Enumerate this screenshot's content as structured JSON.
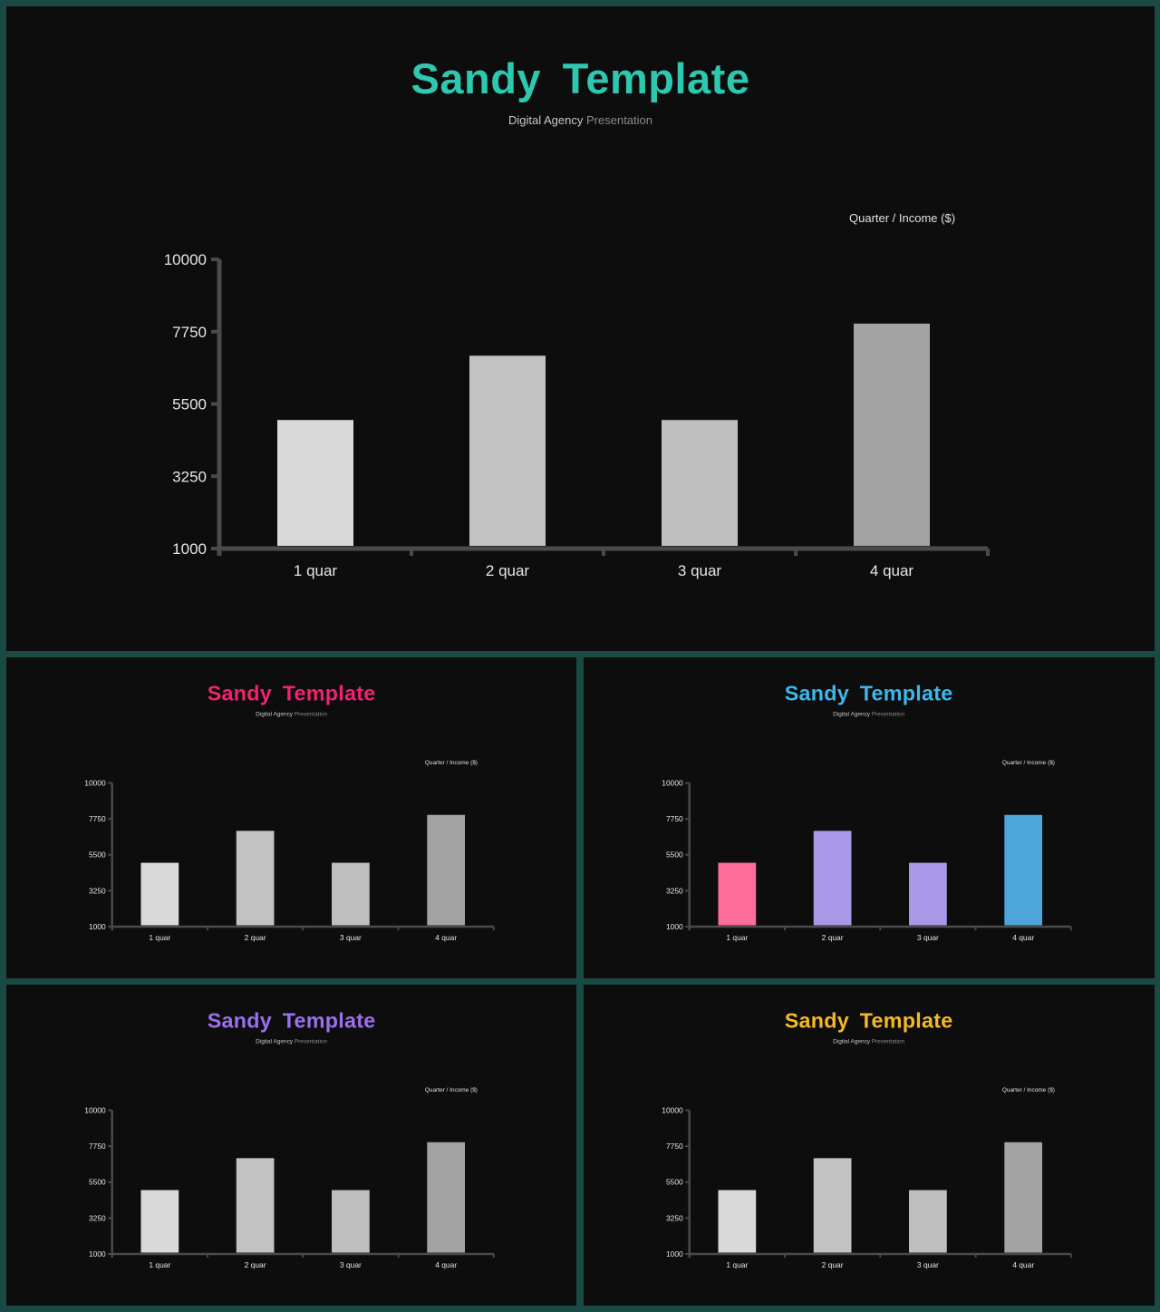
{
  "slides": [
    {
      "title": "Sandy  Template",
      "title_color": "#2ec8b0",
      "subtitle_1": "Digital Agency",
      "subtitle_2": "Presentation",
      "legend": "Quarter / Income  ($)",
      "bar_colors": [
        "#d9d9d9",
        "#c2c2c2",
        "#bfbfbf",
        "#a3a3a3"
      ]
    },
    {
      "title": "Sandy  Template",
      "title_color": "#f0246e",
      "subtitle_1": "Digital Agency",
      "subtitle_2": "Presentation",
      "legend": "Quarter / Income  ($)",
      "bar_colors": [
        "#d9d9d9",
        "#c2c2c2",
        "#bfbfbf",
        "#a3a3a3"
      ]
    },
    {
      "title": "Sandy  Template",
      "title_color": "#3db7ec",
      "subtitle_1": "Digital Agency",
      "subtitle_2": "Presentation",
      "legend": "Quarter / Income  ($)",
      "bar_colors": [
        "#ff6b9a",
        "#a997e8",
        "#a997e8",
        "#4ea5dc"
      ]
    },
    {
      "title": "Sandy  Template",
      "title_color": "#9c6ff0",
      "subtitle_1": "Digital Agency",
      "subtitle_2": "Presentation",
      "legend": "Quarter / Income  ($)",
      "bar_colors": [
        "#d9d9d9",
        "#c2c2c2",
        "#bfbfbf",
        "#a3a3a3"
      ]
    },
    {
      "title": "Sandy  Template",
      "title_color": "#f5b928",
      "subtitle_1": "Digital Agency",
      "subtitle_2": "Presentation",
      "legend": "Quarter / Income  ($)",
      "bar_colors": [
        "#d9d9d9",
        "#c2c2c2",
        "#bfbfbf",
        "#a3a3a3"
      ]
    }
  ],
  "chart_data": [
    {
      "type": "bar",
      "categories": [
        "1 quar",
        "2 quar",
        "3 quar",
        "4 quar"
      ],
      "values": [
        5000,
        7000,
        5000,
        8000
      ],
      "ylim": [
        1000,
        10000
      ],
      "yticks": [
        1000,
        3250,
        5500,
        7750,
        10000
      ],
      "legend": "Quarter / Income  ($)",
      "grid": false
    },
    {
      "type": "bar",
      "categories": [
        "1 quar",
        "2 quar",
        "3 quar",
        "4 quar"
      ],
      "values": [
        5000,
        7000,
        5000,
        8000
      ],
      "ylim": [
        1000,
        10000
      ],
      "yticks": [
        1000,
        3250,
        5500,
        7750,
        10000
      ],
      "legend": "Quarter / Income  ($)",
      "grid": false
    },
    {
      "type": "bar",
      "categories": [
        "1 quar",
        "2 quar",
        "3 quar",
        "4 quar"
      ],
      "values": [
        5000,
        7000,
        5000,
        8000
      ],
      "ylim": [
        1000,
        10000
      ],
      "yticks": [
        1000,
        3250,
        5500,
        7750,
        10000
      ],
      "legend": "Quarter / Income  ($)",
      "grid": false
    },
    {
      "type": "bar",
      "categories": [
        "1 quar",
        "2 quar",
        "3 quar",
        "4 quar"
      ],
      "values": [
        5000,
        7000,
        5000,
        8000
      ],
      "ylim": [
        1000,
        10000
      ],
      "yticks": [
        1000,
        3250,
        5500,
        7750,
        10000
      ],
      "legend": "Quarter / Income  ($)",
      "grid": false
    },
    {
      "type": "bar",
      "categories": [
        "1 quar",
        "2 quar",
        "3 quar",
        "4 quar"
      ],
      "values": [
        5000,
        7000,
        5000,
        8000
      ],
      "ylim": [
        1000,
        10000
      ],
      "yticks": [
        1000,
        3250,
        5500,
        7750,
        10000
      ],
      "legend": "Quarter / Income  ($)",
      "grid": false
    }
  ]
}
